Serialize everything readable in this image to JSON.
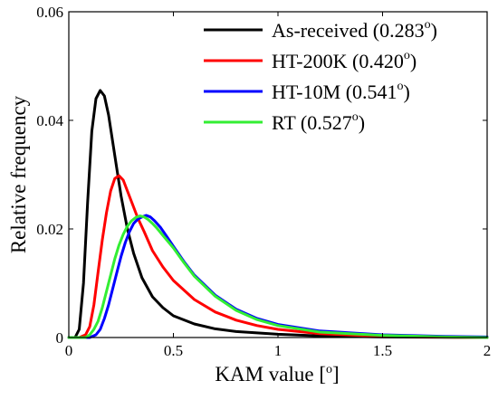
{
  "chart_data": {
    "type": "line",
    "title": "",
    "xlabel": "KAM value [",
    "xlabel_sup": "o",
    "xlabel_suffix": "]",
    "ylabel": "Relative frequency",
    "xlim": [
      0,
      2
    ],
    "ylim": [
      0,
      0.06
    ],
    "x_ticks": [
      0,
      0.5,
      1,
      1.5,
      2
    ],
    "x_tick_labels": [
      "0",
      "0.5",
      "1",
      "1.5",
      "2"
    ],
    "y_ticks": [
      0,
      0.02,
      0.04,
      0.06
    ],
    "y_tick_labels": [
      "0",
      "0.02",
      "0.04",
      "0.06"
    ],
    "grid": false,
    "legend_position": "top-right",
    "series": [
      {
        "name": "As-received (0.283",
        "name_sup": "o",
        "name_suffix": ")",
        "color": "#000000",
        "x": [
          0.0,
          0.03,
          0.05,
          0.07,
          0.09,
          0.11,
          0.13,
          0.15,
          0.17,
          0.19,
          0.21,
          0.23,
          0.25,
          0.28,
          0.31,
          0.35,
          0.4,
          0.45,
          0.5,
          0.6,
          0.7,
          0.8,
          1.0,
          1.2,
          1.5,
          2.0
        ],
        "y": [
          0.0,
          0.0,
          0.0015,
          0.01,
          0.025,
          0.038,
          0.044,
          0.0455,
          0.0445,
          0.041,
          0.036,
          0.031,
          0.026,
          0.02,
          0.0155,
          0.011,
          0.0075,
          0.0055,
          0.004,
          0.0025,
          0.0016,
          0.0011,
          0.0006,
          0.0003,
          0.0001,
          0.0
        ]
      },
      {
        "name": "HT-200K (0.420",
        "name_sup": "o",
        "name_suffix": ")",
        "color": "#ff0000",
        "x": [
          0.0,
          0.05,
          0.08,
          0.1,
          0.12,
          0.14,
          0.16,
          0.18,
          0.2,
          0.22,
          0.24,
          0.26,
          0.28,
          0.3,
          0.33,
          0.36,
          0.4,
          0.45,
          0.5,
          0.6,
          0.7,
          0.8,
          0.9,
          1.0,
          1.2,
          1.5,
          2.0
        ],
        "y": [
          0.0,
          0.0,
          0.0005,
          0.002,
          0.006,
          0.012,
          0.018,
          0.023,
          0.027,
          0.0293,
          0.0298,
          0.029,
          0.027,
          0.025,
          0.022,
          0.0195,
          0.016,
          0.013,
          0.0105,
          0.007,
          0.0047,
          0.0032,
          0.0022,
          0.0015,
          0.0007,
          0.0002,
          0.0
        ]
      },
      {
        "name": "HT-10M (0.541",
        "name_sup": "o",
        "name_suffix": ")",
        "color": "#0000ff",
        "x": [
          0.0,
          0.1,
          0.13,
          0.15,
          0.17,
          0.19,
          0.21,
          0.23,
          0.25,
          0.27,
          0.29,
          0.31,
          0.33,
          0.35,
          0.37,
          0.39,
          0.41,
          0.44,
          0.47,
          0.5,
          0.55,
          0.6,
          0.7,
          0.8,
          0.9,
          1.0,
          1.2,
          1.5,
          1.8,
          2.0
        ],
        "y": [
          0.0,
          0.0,
          0.0005,
          0.0015,
          0.0035,
          0.006,
          0.009,
          0.012,
          0.015,
          0.0175,
          0.0195,
          0.021,
          0.0218,
          0.0222,
          0.0225,
          0.0222,
          0.0215,
          0.0202,
          0.0185,
          0.0168,
          0.014,
          0.0115,
          0.0078,
          0.0052,
          0.0035,
          0.0024,
          0.0012,
          0.0005,
          0.0002,
          0.0001
        ]
      },
      {
        "name": "RT (0.527",
        "name_sup": "o",
        "name_suffix": ")",
        "color": "#33ee33",
        "x": [
          0.0,
          0.08,
          0.1,
          0.12,
          0.14,
          0.16,
          0.18,
          0.2,
          0.22,
          0.24,
          0.26,
          0.28,
          0.3,
          0.32,
          0.34,
          0.36,
          0.38,
          0.4,
          0.42,
          0.45,
          0.5,
          0.55,
          0.6,
          0.7,
          0.8,
          0.9,
          1.0,
          1.2,
          1.5,
          1.8,
          2.0
        ],
        "y": [
          0.0,
          0.0,
          0.0005,
          0.0015,
          0.003,
          0.0055,
          0.0085,
          0.0115,
          0.0145,
          0.017,
          0.019,
          0.0205,
          0.0215,
          0.0221,
          0.0224,
          0.0222,
          0.0217,
          0.021,
          0.0202,
          0.0188,
          0.0165,
          0.0138,
          0.0113,
          0.0076,
          0.005,
          0.0033,
          0.0022,
          0.001,
          0.0004,
          0.0001,
          0.0
        ]
      }
    ]
  }
}
